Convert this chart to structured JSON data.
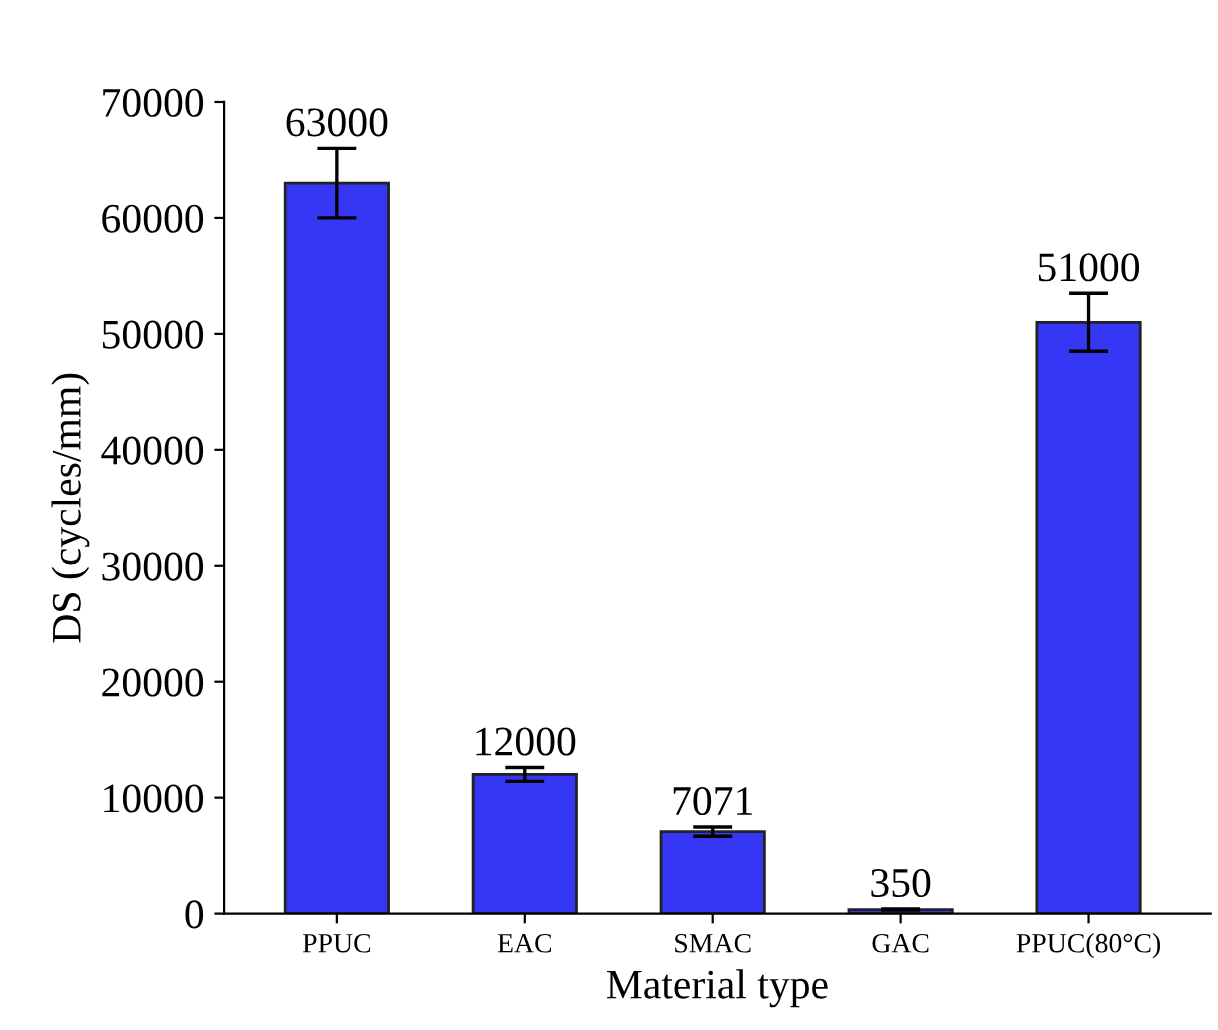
{
  "chart_data": {
    "type": "bar",
    "xlabel": "Material type",
    "ylabel": "DS (cycles/mm)",
    "categories": [
      "PPUC",
      "EAC",
      "SMAC",
      "GAC",
      "PPUC(80°C)"
    ],
    "values": [
      63000,
      12000,
      7071,
      350,
      51000
    ],
    "errors": [
      3000,
      600,
      400,
      50,
      2500
    ],
    "color": "#3636f5",
    "ylim": [
      0,
      70000
    ],
    "yticks": [
      0,
      10000,
      20000,
      30000,
      40000,
      50000,
      60000,
      70000
    ],
    "data_labels": true,
    "grid": false,
    "legend": false
  }
}
